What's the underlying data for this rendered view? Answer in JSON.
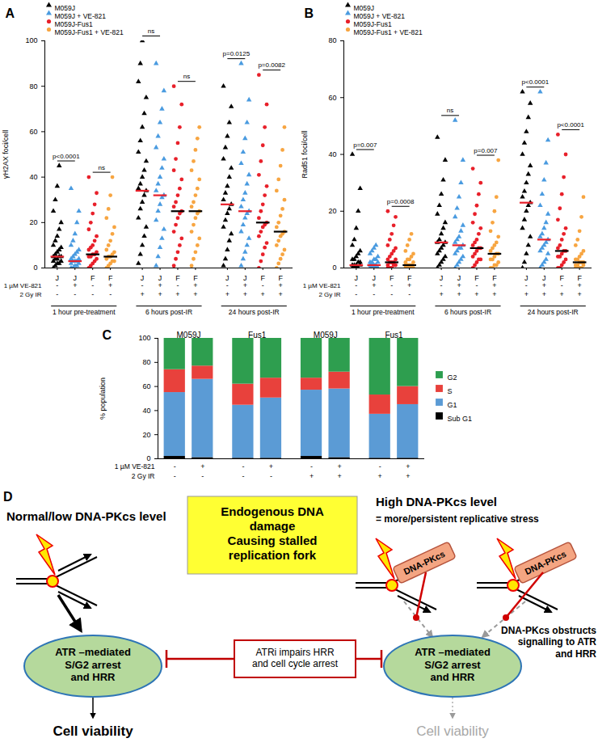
{
  "chart_data": [
    {
      "type": "scatter",
      "title": "A",
      "y_label": "γH2AX foci/cell",
      "ylim": [
        0,
        100
      ],
      "yticks": [
        0,
        20,
        40,
        60,
        80,
        100
      ],
      "legend": "top-left",
      "categories": [
        "J",
        "J",
        "F",
        "F",
        "J",
        "J",
        "F",
        "F",
        "J",
        "J",
        "F",
        "F"
      ],
      "groups": [
        "1 hour pre-treatment",
        "6 hours post-IR",
        "24 hours post-IR"
      ],
      "rows": [
        {
          "label": "1 µM VE-821",
          "values": [
            "-",
            "+",
            "-",
            "+",
            "-",
            "+",
            "-",
            "+",
            "-",
            "+",
            "-",
            "+"
          ]
        },
        {
          "label": "2 Gy IR",
          "values": [
            "-",
            "-",
            "-",
            "-",
            "+",
            "+",
            "+",
            "+",
            "+",
            "+",
            "+",
            "+"
          ]
        }
      ],
      "series": [
        {
          "name": "M059J",
          "color": "#000000",
          "marker": "triangle",
          "medians": [
            5,
            34,
            28
          ],
          "values": [
            [
              0,
              1,
              2,
              2,
              3,
              3,
              4,
              4,
              5,
              5,
              5,
              6,
              7,
              8,
              9,
              10,
              12,
              14,
              17,
              20,
              25,
              30,
              36,
              45
            ],
            [
              2,
              6,
              10,
              14,
              18,
              22,
              26,
              29,
              32,
              34,
              35,
              37,
              40,
              43,
              47,
              51,
              56,
              62,
              68,
              75,
              82,
              90,
              100
            ],
            [
              1,
              4,
              8,
              12,
              15,
              18,
              21,
              24,
              26,
              28,
              30,
              33,
              36,
              40,
              44,
              48,
              53,
              58,
              64,
              71,
              80
            ]
          ]
        },
        {
          "name": "M059J + VE-821",
          "color": "#4a9be0",
          "marker": "triangle",
          "medians": [
            3,
            32,
            25
          ],
          "values": [
            [
              0,
              0,
              1,
              1,
              2,
              2,
              3,
              3,
              3,
              4,
              4,
              5,
              6,
              7,
              8,
              10,
              12,
              15,
              20,
              25,
              35
            ],
            [
              1,
              5,
              9,
              13,
              17,
              21,
              25,
              28,
              31,
              32,
              34,
              37,
              40,
              44,
              48,
              53,
              58,
              64,
              70,
              78,
              90
            ],
            [
              1,
              4,
              7,
              10,
              13,
              16,
              19,
              22,
              24,
              25,
              27,
              30,
              33,
              37,
              41,
              46,
              51,
              57,
              64,
              74,
              90
            ]
          ]
        },
        {
          "name": "M059J-Fus1",
          "color": "#e8202a",
          "marker": "circle",
          "medians": [
            6,
            25,
            20
          ],
          "values": [
            [
              0,
              1,
              2,
              3,
              4,
              5,
              5,
              6,
              6,
              7,
              8,
              9,
              10,
              12,
              14,
              17,
              20,
              24,
              28,
              33,
              40
            ],
            [
              1,
              4,
              7,
              10,
              13,
              16,
              19,
              22,
              24,
              25,
              27,
              29,
              32,
              35,
              39,
              43,
              48,
              55,
              62,
              72,
              80
            ],
            [
              0,
              3,
              6,
              9,
              11,
              14,
              16,
              18,
              19,
              20,
              22,
              25,
              28,
              32,
              36,
              41,
              47,
              54,
              62,
              72,
              85
            ]
          ]
        },
        {
          "name": "M059J-Fus1 + VE-821",
          "color": "#f7a541",
          "marker": "circle",
          "medians": [
            5,
            25,
            16
          ],
          "values": [
            [
              0,
              1,
              2,
              3,
              3,
              4,
              5,
              5,
              6,
              7,
              8,
              10,
              12,
              15,
              18,
              22,
              26,
              32,
              40
            ],
            [
              1,
              4,
              7,
              10,
              13,
              16,
              19,
              22,
              24,
              25,
              27,
              29,
              32,
              35,
              39,
              43,
              47,
              52,
              57,
              62
            ],
            [
              0,
              2,
              4,
              6,
              8,
              10,
              12,
              14,
              15,
              16,
              18,
              20,
              23,
              26,
              30,
              34,
              39,
              45,
              52,
              62
            ]
          ]
        }
      ],
      "annotations": [
        {
          "text": "p<0.0001",
          "columns": [
            0,
            1
          ]
        },
        {
          "text": "ns",
          "columns": [
            2,
            3
          ]
        },
        {
          "text": "ns",
          "columns": [
            4,
            5
          ]
        },
        {
          "text": "ns",
          "columns": [
            6,
            7
          ]
        },
        {
          "text": "p=0.0125",
          "columns": [
            8,
            9
          ]
        },
        {
          "text": "p=0.0082",
          "columns": [
            10,
            11
          ]
        }
      ]
    },
    {
      "type": "scatter",
      "title": "B",
      "y_label": "Rad51 foci/cell",
      "ylim": [
        0,
        80
      ],
      "yticks": [
        0,
        20,
        40,
        60,
        80
      ],
      "legend": "top-left",
      "categories": [
        "J",
        "J",
        "F",
        "F",
        "J",
        "J",
        "F",
        "F",
        "J",
        "J",
        "F",
        "F"
      ],
      "groups": [
        "1 hour pre-treatment",
        "6 hours post-IR",
        "24 hours post-IR"
      ],
      "rows": [
        {
          "label": "1 µM VE-821",
          "values": [
            "-",
            "+",
            "-",
            "+",
            "-",
            "+",
            "-",
            "+",
            "-",
            "+",
            "-",
            "+"
          ]
        },
        {
          "label": "2 Gy IR",
          "values": [
            "-",
            "-",
            "-",
            "-",
            "+",
            "+",
            "+",
            "+",
            "+",
            "+",
            "+",
            "+"
          ]
        }
      ],
      "series": [
        {
          "name": "M059J",
          "color": "#000000",
          "marker": "triangle",
          "medians": [
            1,
            9,
            23
          ],
          "values": [
            [
              0,
              0,
              0,
              0,
              1,
              1,
              1,
              1,
              2,
              2,
              3,
              3,
              4,
              5,
              6,
              8,
              10,
              14,
              20,
              28,
              40
            ],
            [
              0,
              1,
              2,
              3,
              4,
              5,
              6,
              7,
              8,
              9,
              9,
              10,
              12,
              14,
              16,
              19,
              22,
              26,
              31,
              38,
              46
            ],
            [
              0,
              2,
              5,
              8,
              11,
              14,
              17,
              20,
              22,
              23,
              25,
              27,
              30,
              33,
              36,
              40,
              44,
              48,
              53,
              58,
              62
            ]
          ]
        },
        {
          "name": "M059J + VE-821",
          "color": "#4a9be0",
          "marker": "triangle",
          "medians": [
            1,
            8,
            10
          ],
          "values": [
            [
              0,
              0,
              0,
              0,
              0,
              1,
              1,
              1,
              1,
              2,
              2,
              2,
              3,
              3,
              4,
              5,
              6,
              7,
              8
            ],
            [
              0,
              1,
              2,
              3,
              4,
              5,
              6,
              7,
              7,
              8,
              9,
              10,
              11,
              13,
              15,
              18,
              21,
              25,
              30,
              38,
              52
            ],
            [
              0,
              1,
              2,
              3,
              5,
              6,
              7,
              8,
              9,
              10,
              11,
              12,
              14,
              16,
              19,
              22,
              26,
              31,
              37,
              45,
              62
            ]
          ]
        },
        {
          "name": "M059J-Fus1",
          "color": "#e8202a",
          "marker": "circle",
          "medians": [
            2,
            7,
            6
          ],
          "values": [
            [
              0,
              0,
              0,
              1,
              1,
              1,
              2,
              2,
              2,
              3,
              3,
              4,
              5,
              6,
              7,
              8,
              10,
              12,
              15,
              18,
              20
            ],
            [
              0,
              1,
              2,
              3,
              3,
              4,
              5,
              6,
              7,
              7,
              8,
              9,
              10,
              12,
              14,
              16,
              19,
              22,
              26,
              30,
              35
            ],
            [
              0,
              0,
              1,
              2,
              3,
              4,
              4,
              5,
              6,
              6,
              7,
              8,
              10,
              12,
              14,
              17,
              21,
              26,
              32,
              40,
              47
            ]
          ]
        },
        {
          "name": "M059J-Fus1 + VE-821",
          "color": "#f7a541",
          "marker": "circle",
          "medians": [
            1,
            5,
            2
          ],
          "values": [
            [
              0,
              0,
              0,
              0,
              0,
              1,
              1,
              1,
              1,
              2,
              2,
              3,
              3,
              4,
              5,
              6,
              8,
              10,
              12
            ],
            [
              0,
              0,
              1,
              1,
              2,
              3,
              3,
              4,
              5,
              5,
              6,
              7,
              8,
              9,
              11,
              13,
              16,
              20,
              25,
              38
            ],
            [
              0,
              0,
              0,
              0,
              1,
              1,
              1,
              2,
              2,
              2,
              3,
              3,
              4,
              5,
              6,
              8,
              10,
              13,
              18,
              25
            ]
          ]
        }
      ],
      "annotations": [
        {
          "text": "p=0.007",
          "columns": [
            0,
            1
          ]
        },
        {
          "text": "p=0.0008",
          "columns": [
            2,
            3
          ]
        },
        {
          "text": "ns",
          "columns": [
            4,
            5
          ]
        },
        {
          "text": "p=0.007",
          "columns": [
            6,
            7
          ]
        },
        {
          "text": "p<0.0001",
          "columns": [
            8,
            9
          ]
        },
        {
          "text": "p<0.0001",
          "columns": [
            10,
            11
          ]
        }
      ]
    },
    {
      "type": "bar",
      "stacked": true,
      "title": "C",
      "y_label": "% population",
      "ylim": [
        0,
        100
      ],
      "yticks": [
        0,
        20,
        40,
        60,
        80,
        100
      ],
      "legend": "right",
      "tick_labels": "y",
      "categories": [
        null,
        null,
        null,
        null,
        null,
        null,
        null,
        null
      ],
      "group_labels": [
        "M059J",
        "Fus1",
        "M059J",
        "Fus1"
      ],
      "rows": [
        {
          "label": "1 µM VE-821",
          "values": [
            "-",
            "+",
            "-",
            "+",
            "-",
            "+",
            "-",
            "+"
          ]
        },
        {
          "label": "2 Gy IR",
          "values": [
            "-",
            "-",
            "-",
            "-",
            "+",
            "+",
            "+",
            "+"
          ]
        }
      ],
      "series": [
        {
          "name": "G2",
          "color": "#2e9e4f",
          "values": [
            26,
            23,
            38,
            33,
            33,
            28,
            47,
            40
          ]
        },
        {
          "name": "S",
          "color": "#e8413c",
          "values": [
            19,
            11,
            17.5,
            16.5,
            10,
            14,
            16,
            15
          ]
        },
        {
          "name": "G1",
          "color": "#5b9bd5",
          "values": [
            53,
            65,
            44,
            50,
            55,
            57,
            36.5,
            44.5
          ]
        },
        {
          "name": "Sub G1",
          "color": "#000000",
          "values": [
            2,
            1,
            0.5,
            0.5,
            2,
            1,
            0.5,
            0.5
          ]
        }
      ]
    }
  ],
  "diagram": {
    "title": "D",
    "left": {
      "title": "Normal/low DNA-PKcs level",
      "outcome": "Cell viability"
    },
    "right": {
      "title": "High DNA-PKcs level",
      "subtitle": "= more/persistent replicative stress",
      "protein": "DNA-PKcs",
      "note": [
        "DNA-PKcs obstructs",
        "signalling to ATR",
        "and HRR"
      ],
      "outcome": "Cell viability"
    },
    "center": {
      "damage": [
        "Endogenous DNA",
        "damage",
        "Causing stalled",
        "replication fork"
      ],
      "inhibitor": [
        "ATRi impairs HRR",
        "and cell cycle arrest"
      ]
    },
    "response": [
      "ATR –mediated",
      "S/G2 arrest",
      "and HRR"
    ]
  }
}
